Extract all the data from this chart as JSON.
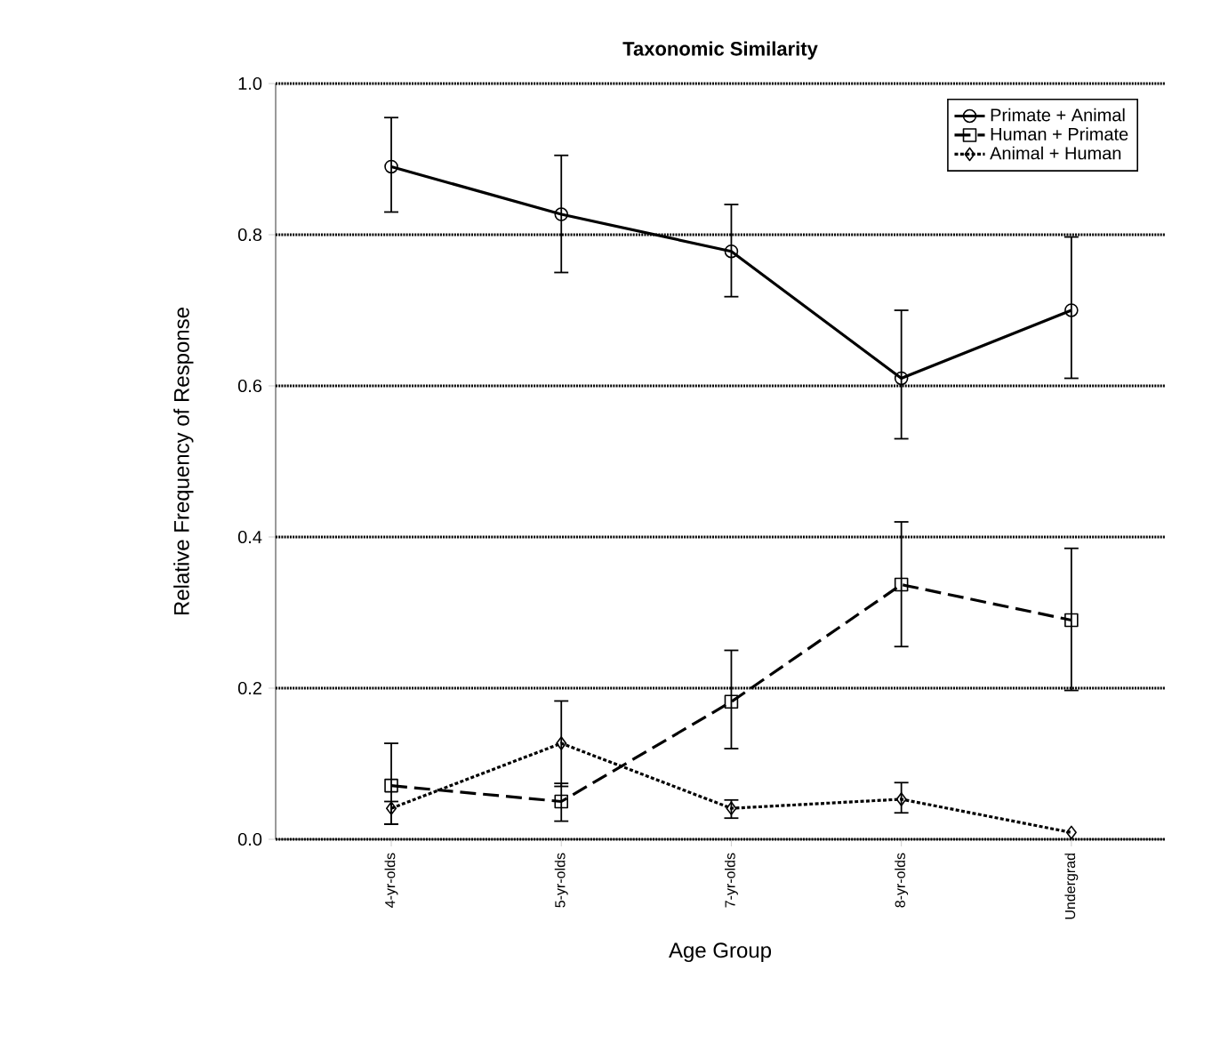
{
  "chart_data": {
    "type": "line",
    "title": "Taxonomic Similarity",
    "xlabel": "Age Group",
    "ylabel": "Relative Frequency of Response",
    "categories": [
      "4-yr-olds",
      "5-yr-olds",
      "7-yr-olds",
      "8-yr-olds",
      "Undergrad"
    ],
    "series": [
      {
        "name": "Primate + Animal",
        "color": "#000000",
        "marker": "circle",
        "line_style": "solid",
        "values": [
          0.89,
          0.827,
          0.778,
          0.61,
          0.7
        ],
        "errors": [
          [
            0.83,
            0.955
          ],
          [
            0.75,
            0.905
          ],
          [
            0.718,
            0.84
          ],
          [
            0.53,
            0.7
          ],
          [
            0.61,
            0.797
          ]
        ]
      },
      {
        "name": "Human + Primate",
        "color": "#000000",
        "marker": "square",
        "line_style": "dashed",
        "values": [
          0.071,
          0.05,
          0.182,
          0.337,
          0.29
        ],
        "errors": [
          [
            0.02,
            0.127
          ],
          [
            0.024,
            0.074
          ],
          [
            0.12,
            0.25
          ],
          [
            0.255,
            0.42
          ],
          [
            0.197,
            0.385
          ]
        ]
      },
      {
        "name": "Animal + Human",
        "color": "#000000",
        "marker": "diamond",
        "line_style": "dotted",
        "values": [
          0.041,
          0.127,
          0.041,
          0.053,
          0.009
        ],
        "errors": [
          [
            0.02,
            0.05
          ],
          [
            0.07,
            0.183
          ],
          [
            0.028,
            0.052
          ],
          [
            0.035,
            0.075
          ],
          null
        ]
      }
    ],
    "ylim": [
      0,
      1
    ],
    "yticks": [
      {
        "value": 0,
        "label": "0.0"
      },
      {
        "value": 0.2,
        "label": "0.2"
      },
      {
        "value": 0.4,
        "label": "0.4"
      },
      {
        "value": 0.6,
        "label": "0.6"
      },
      {
        "value": 0.8,
        "label": "0.8"
      },
      {
        "value": 1,
        "label": "1.0"
      }
    ],
    "grid": "y",
    "legend": "top right"
  }
}
